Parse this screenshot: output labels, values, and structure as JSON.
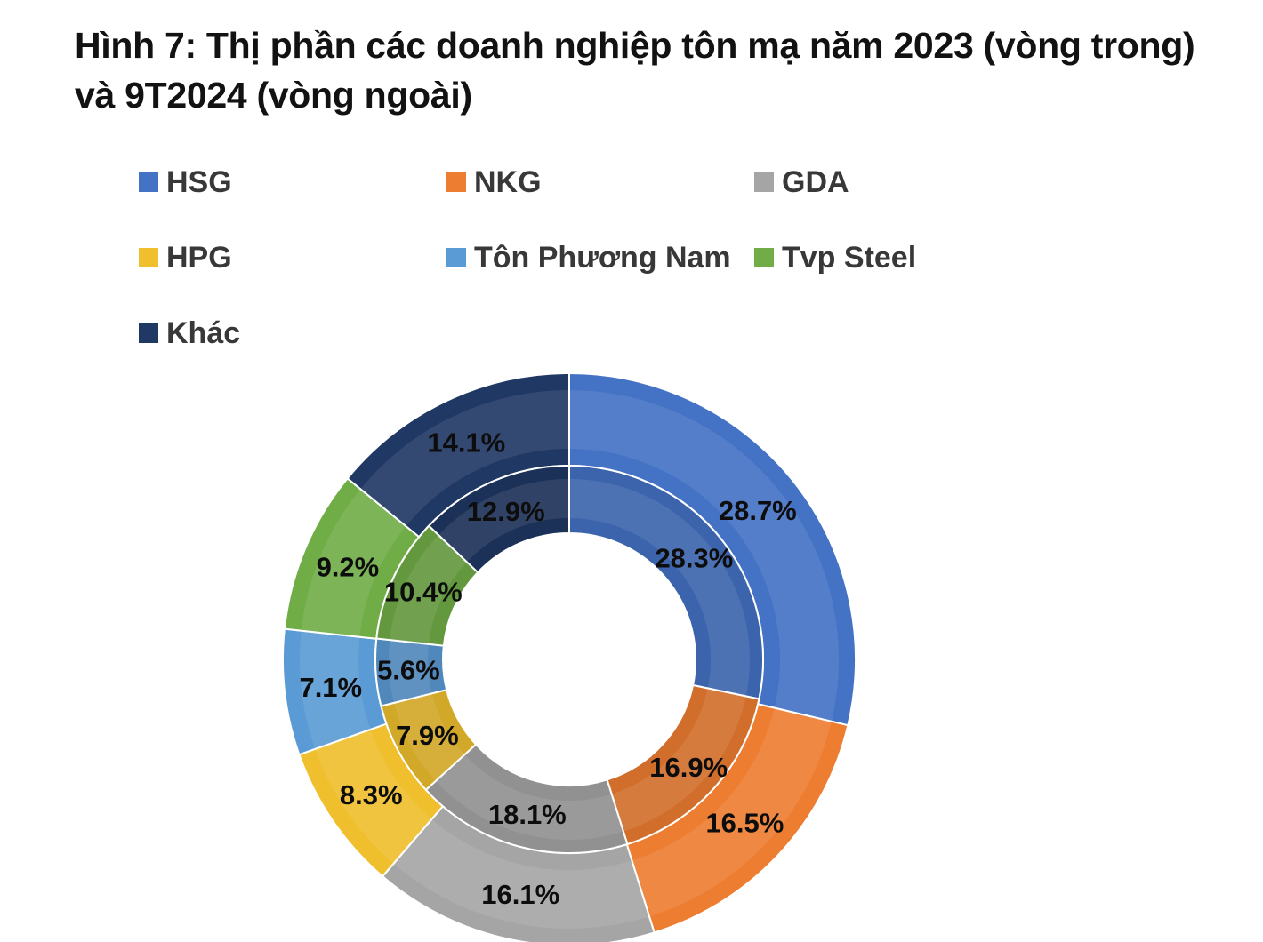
{
  "chart_data": {
    "type": "pie",
    "subtype": "nested-donut",
    "title": "Hình 7: Thị phần các doanh nghiệp tôn mạ năm 2023 (vòng trong) và 9T2024 (vòng ngoài)",
    "categories": [
      "HSG",
      "NKG",
      "GDA",
      "HPG",
      "Tôn Phương Nam",
      "Tvp Steel",
      "Khác"
    ],
    "colors": [
      "#4472C4",
      "#ED7D31",
      "#A5A5A5",
      "#EFBF2D",
      "#5B9BD5",
      "#70AD47",
      "#203864"
    ],
    "series": [
      {
        "name": "2023 (vòng trong)",
        "ring": "inner",
        "values": [
          28.3,
          16.9,
          18.1,
          7.9,
          5.6,
          10.4,
          12.9
        ]
      },
      {
        "name": "9T2024 (vòng ngoài)",
        "ring": "outer",
        "values": [
          28.7,
          16.5,
          16.1,
          8.3,
          7.1,
          9.2,
          14.1
        ]
      }
    ],
    "label_format": "percent-1-decimal",
    "legend_position": "top",
    "start_angle_deg": 0,
    "direction": "clockwise"
  }
}
